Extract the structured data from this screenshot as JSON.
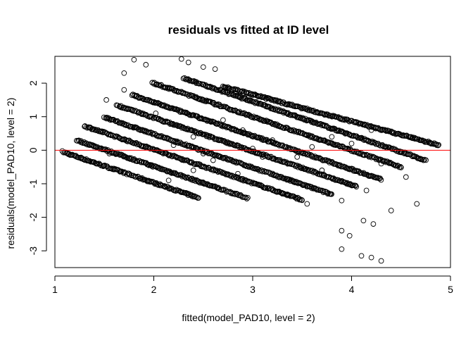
{
  "chart_data": {
    "type": "scatter",
    "title": "residuals vs fitted at ID level",
    "xlabel": "fitted(model_PAD10, level = 2)",
    "ylabel": "residuals(model_PAD10, level = 2)",
    "xlim": [
      1.0,
      5.0
    ],
    "ylim": [
      -3.5,
      2.8
    ],
    "x_ticks": [
      "1",
      "2",
      "3",
      "4",
      "5"
    ],
    "y_ticks": [
      "-3",
      "-2",
      "-1",
      "0",
      "1",
      "2"
    ],
    "grid": false,
    "legend": "none",
    "reference_line": {
      "y": 0,
      "color": "#ff0000"
    },
    "marker": "open-circle",
    "series": [
      {
        "pattern": "diagonal-band",
        "x_start": 1.08,
        "x_end": 2.45,
        "y_intercept_at_x_start": -0.05,
        "slope": -1.0
      },
      {
        "pattern": "diagonal-band",
        "x_start": 1.22,
        "x_end": 2.95,
        "y_intercept_at_x_start": 0.3,
        "slope": -1.0
      },
      {
        "pattern": "diagonal-band",
        "x_start": 1.3,
        "x_end": 3.5,
        "y_intercept_at_x_start": 0.72,
        "slope": -1.0
      },
      {
        "pattern": "diagonal-band",
        "x_start": 1.5,
        "x_end": 3.8,
        "y_intercept_at_x_start": 0.98,
        "slope": -1.0
      },
      {
        "pattern": "diagonal-band",
        "x_start": 1.62,
        "x_end": 4.05,
        "y_intercept_at_x_start": 1.35,
        "slope": -1.0
      },
      {
        "pattern": "diagonal-band",
        "x_start": 1.78,
        "x_end": 4.3,
        "y_intercept_at_x_start": 1.65,
        "slope": -1.0
      },
      {
        "pattern": "diagonal-band",
        "x_start": 1.98,
        "x_end": 4.5,
        "y_intercept_at_x_start": 2.02,
        "slope": -1.0
      },
      {
        "pattern": "diagonal-band",
        "x_start": 2.3,
        "x_end": 4.75,
        "y_intercept_at_x_start": 2.15,
        "slope": -1.0
      },
      {
        "pattern": "diagonal-band",
        "x_start": 2.7,
        "x_end": 4.88,
        "y_intercept_at_x_start": 1.9,
        "slope": -0.8
      }
    ],
    "scattered_points": [
      [
        1.8,
        2.7
      ],
      [
        1.92,
        2.55
      ],
      [
        2.28,
        2.72
      ],
      [
        2.35,
        2.62
      ],
      [
        1.7,
        2.3
      ],
      [
        2.5,
        2.48
      ],
      [
        2.62,
        2.42
      ],
      [
        1.52,
        1.5
      ],
      [
        1.7,
        1.8
      ],
      [
        2.02,
        1.1
      ],
      [
        2.4,
        0.4
      ],
      [
        2.7,
        0.9
      ],
      [
        2.9,
        0.6
      ],
      [
        3.2,
        0.3
      ],
      [
        3.45,
        -0.2
      ],
      [
        3.6,
        0.1
      ],
      [
        3.8,
        0.4
      ],
      [
        4.0,
        0.2
      ],
      [
        4.2,
        0.6
      ],
      [
        4.6,
        0.4
      ],
      [
        2.15,
        -0.9
      ],
      [
        2.4,
        -0.6
      ],
      [
        2.6,
        -0.3
      ],
      [
        2.85,
        -0.7
      ],
      [
        3.1,
        -0.2
      ],
      [
        3.4,
        -0.9
      ],
      [
        3.7,
        -0.6
      ],
      [
        3.95,
        -1.0
      ],
      [
        4.3,
        -0.4
      ],
      [
        4.55,
        -0.8
      ],
      [
        3.3,
        -1.3
      ],
      [
        3.55,
        -1.6
      ],
      [
        3.9,
        -1.5
      ],
      [
        4.15,
        -1.2
      ],
      [
        4.4,
        -1.8
      ],
      [
        4.66,
        -1.6
      ],
      [
        3.9,
        -2.4
      ],
      [
        3.98,
        -2.55
      ],
      [
        3.9,
        -2.95
      ],
      [
        4.1,
        -3.15
      ],
      [
        4.2,
        -3.2
      ],
      [
        4.3,
        -3.3
      ],
      [
        4.12,
        -2.1
      ],
      [
        4.22,
        -2.2
      ],
      [
        1.75,
        -0.25
      ],
      [
        1.55,
        -0.1
      ],
      [
        1.95,
        -0.45
      ],
      [
        2.2,
        0.15
      ],
      [
        2.5,
        -0.1
      ],
      [
        3.0,
        0.05
      ]
    ]
  }
}
